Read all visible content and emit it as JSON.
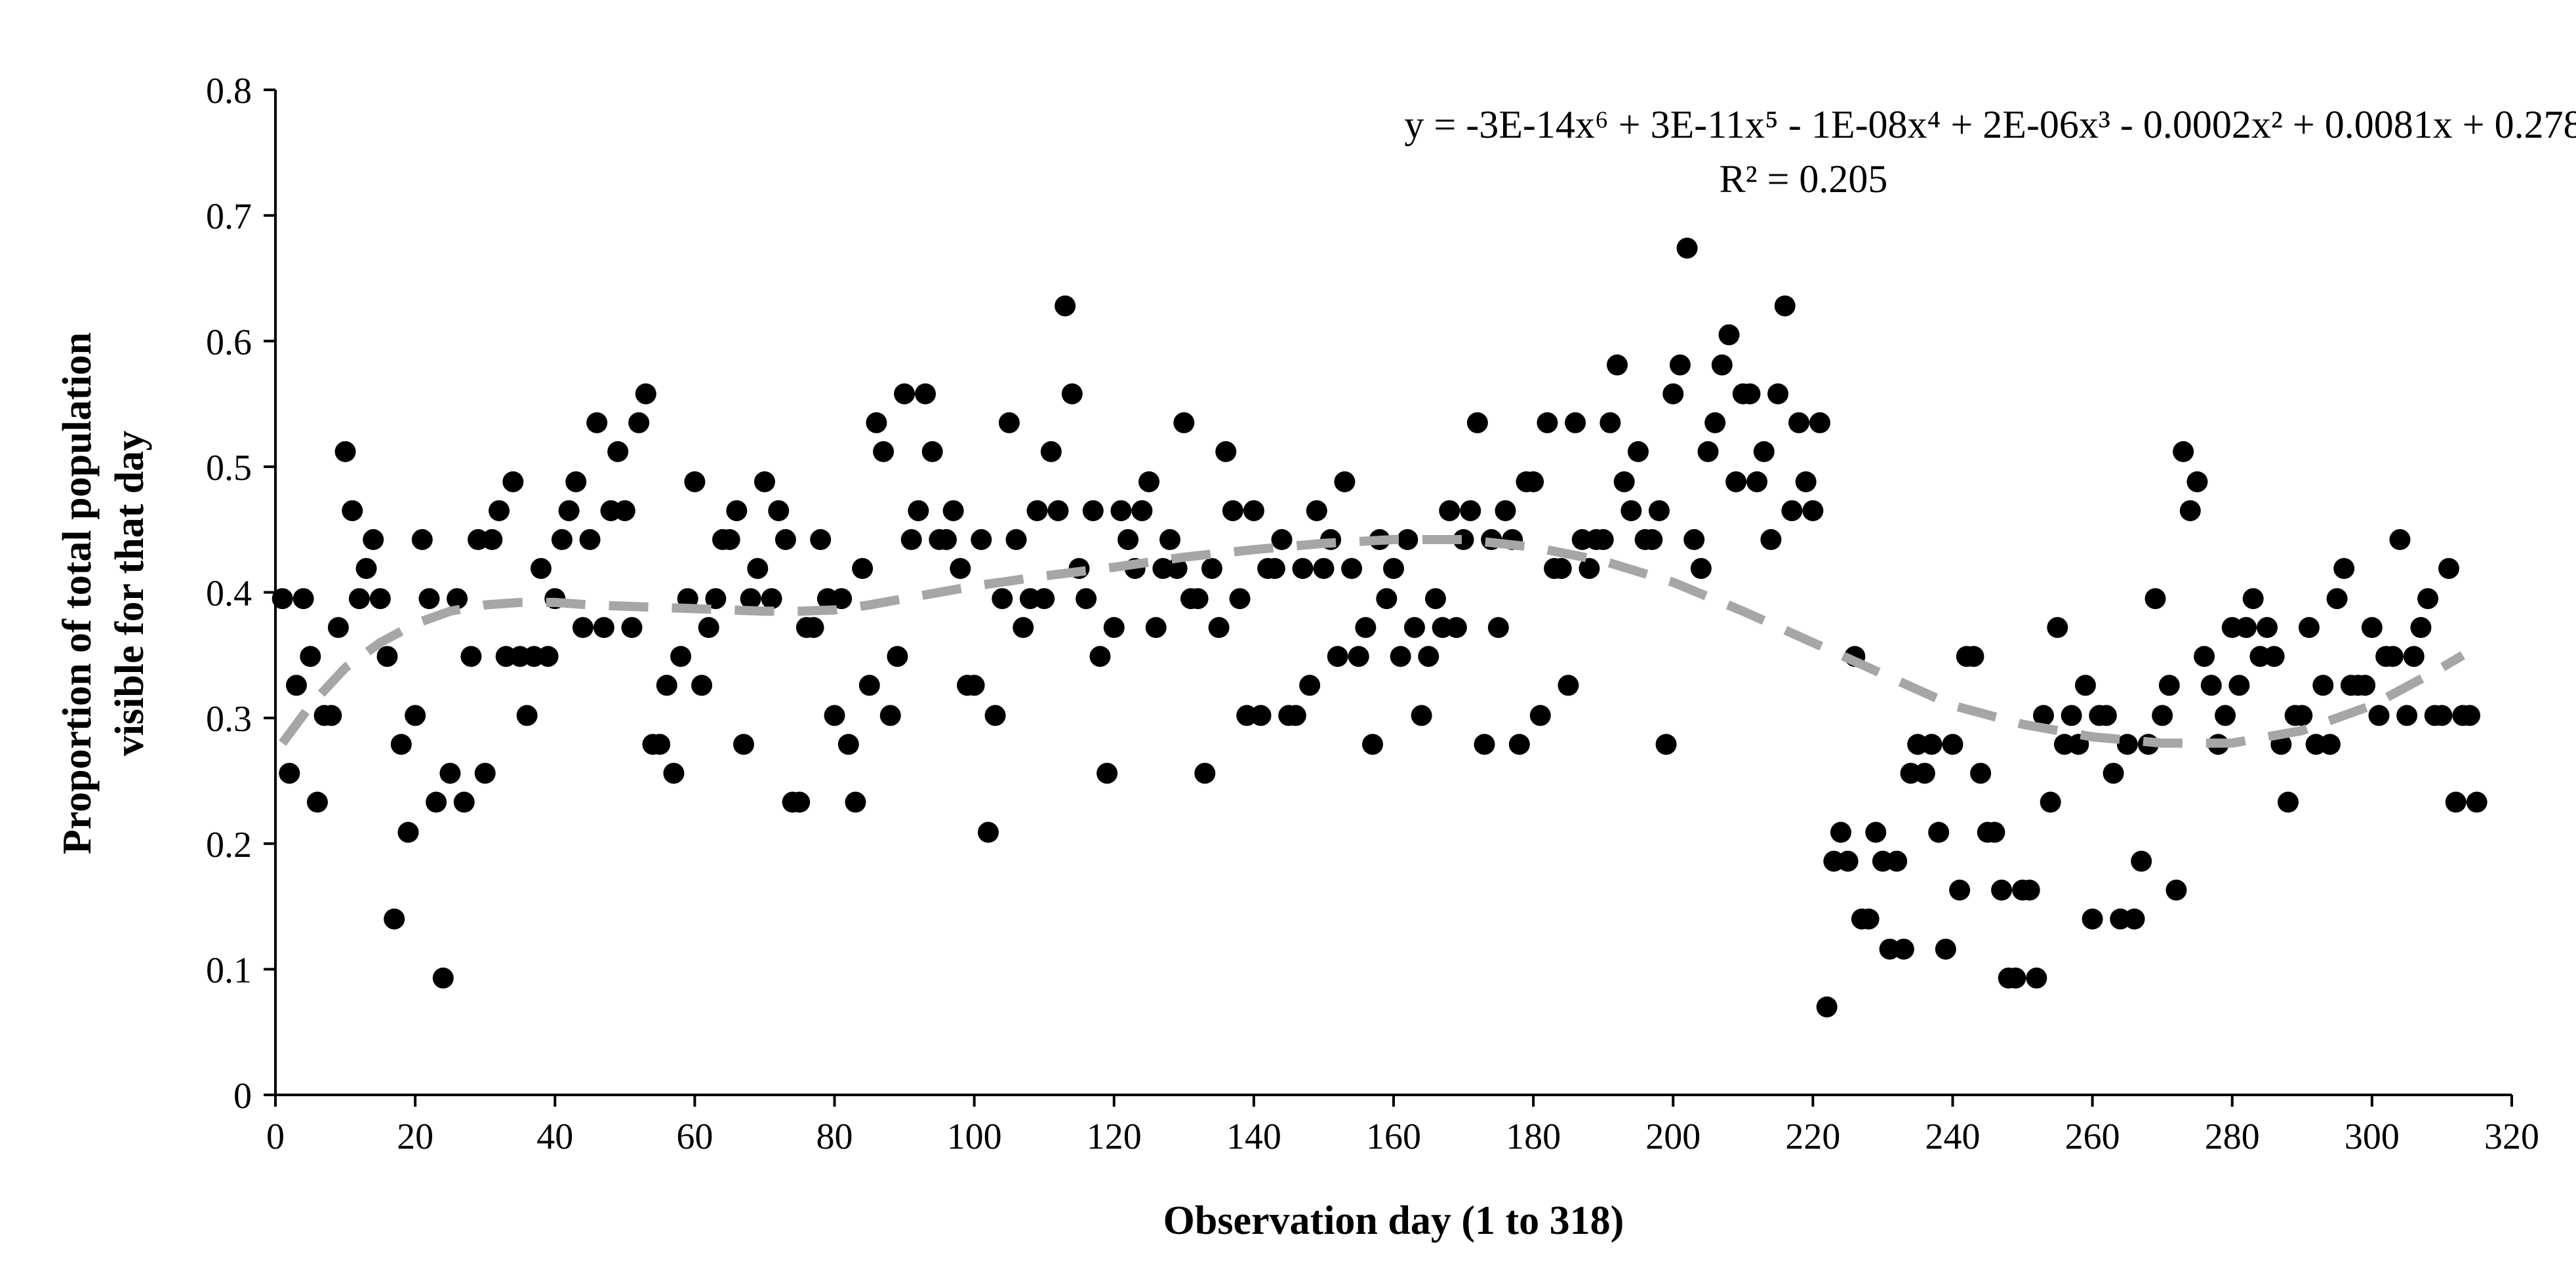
{
  "chart_data": {
    "type": "scatter",
    "xlabel": "Observation day (1 to 318)",
    "ylabel_lines": [
      "Proportion of total population",
      "visible for that day"
    ],
    "xlim": [
      0,
      320
    ],
    "ylim": [
      0,
      0.8
    ],
    "x_ticks": [
      "0",
      "20",
      "40",
      "60",
      "80",
      "100",
      "120",
      "140",
      "160",
      "180",
      "200",
      "220",
      "240",
      "260",
      "280",
      "300",
      "320"
    ],
    "y_ticks": [
      "0",
      "0.1",
      "0.2",
      "0.3",
      "0.4",
      "0.5",
      "0.6",
      "0.7",
      "0.8"
    ],
    "grid": false,
    "legend": "none",
    "trendline": {
      "type": "polynomial",
      "order": 6,
      "equation": "y = -3E-14x⁶ + 3E-11x⁵ - 1E-08x⁴ + 2E-06x³ - 0.0002x² + 0.0081x + 0.278",
      "r_squared": "R² = 0.205",
      "x_range": [
        1,
        313
      ],
      "curve": [
        [
          1,
          0.28
        ],
        [
          5,
          0.31
        ],
        [
          10,
          0.34
        ],
        [
          15,
          0.36
        ],
        [
          20,
          0.375
        ],
        [
          25,
          0.385
        ],
        [
          30,
          0.39
        ],
        [
          35,
          0.392
        ],
        [
          40,
          0.392
        ],
        [
          45,
          0.39
        ],
        [
          50,
          0.389
        ],
        [
          55,
          0.388
        ],
        [
          60,
          0.387
        ],
        [
          65,
          0.386
        ],
        [
          70,
          0.385
        ],
        [
          75,
          0.385
        ],
        [
          80,
          0.386
        ],
        [
          85,
          0.39
        ],
        [
          90,
          0.395
        ],
        [
          95,
          0.4
        ],
        [
          100,
          0.405
        ],
        [
          110,
          0.413
        ],
        [
          120,
          0.42
        ],
        [
          130,
          0.428
        ],
        [
          140,
          0.434
        ],
        [
          150,
          0.439
        ],
        [
          160,
          0.442
        ],
        [
          170,
          0.442
        ],
        [
          180,
          0.436
        ],
        [
          190,
          0.425
        ],
        [
          200,
          0.408
        ],
        [
          210,
          0.385
        ],
        [
          220,
          0.36
        ],
        [
          230,
          0.335
        ],
        [
          240,
          0.31
        ],
        [
          250,
          0.295
        ],
        [
          260,
          0.285
        ],
        [
          270,
          0.28
        ],
        [
          280,
          0.28
        ],
        [
          290,
          0.29
        ],
        [
          300,
          0.31
        ],
        [
          305,
          0.325
        ],
        [
          310,
          0.34
        ],
        [
          313,
          0.35
        ]
      ]
    },
    "colors": {
      "points": "#000000",
      "trendline": "#a6a6a6",
      "axis": "#000000"
    },
    "points": [
      [
        1,
        0.395
      ],
      [
        2,
        0.256
      ],
      [
        3,
        0.326
      ],
      [
        4,
        0.395
      ],
      [
        5,
        0.349
      ],
      [
        6,
        0.233
      ],
      [
        7,
        0.302
      ],
      [
        8,
        0.302
      ],
      [
        9,
        0.372
      ],
      [
        10,
        0.512
      ],
      [
        11,
        0.465
      ],
      [
        12,
        0.395
      ],
      [
        13,
        0.419
      ],
      [
        14,
        0.442
      ],
      [
        15,
        0.395
      ],
      [
        16,
        0.349
      ],
      [
        17,
        0.14
      ],
      [
        18,
        0.279
      ],
      [
        19,
        0.209
      ],
      [
        20,
        0.302
      ],
      [
        21,
        0.442
      ],
      [
        22,
        0.395
      ],
      [
        23,
        0.233
      ],
      [
        24,
        0.093
      ],
      [
        25,
        0.256
      ],
      [
        26,
        0.395
      ],
      [
        27,
        0.233
      ],
      [
        28,
        0.349
      ],
      [
        29,
        0.442
      ],
      [
        30,
        0.256
      ],
      [
        31,
        0.442
      ],
      [
        32,
        0.465
      ],
      [
        33,
        0.349
      ],
      [
        34,
        0.488
      ],
      [
        35,
        0.349
      ],
      [
        36,
        0.302
      ],
      [
        37,
        0.349
      ],
      [
        38,
        0.419
      ],
      [
        39,
        0.349
      ],
      [
        40,
        0.395
      ],
      [
        41,
        0.442
      ],
      [
        42,
        0.465
      ],
      [
        43,
        0.488
      ],
      [
        44,
        0.372
      ],
      [
        45,
        0.442
      ],
      [
        46,
        0.535
      ],
      [
        47,
        0.372
      ],
      [
        48,
        0.465
      ],
      [
        49,
        0.512
      ],
      [
        50,
        0.465
      ],
      [
        51,
        0.372
      ],
      [
        52,
        0.535
      ],
      [
        53,
        0.558
      ],
      [
        54,
        0.279
      ],
      [
        55,
        0.279
      ],
      [
        56,
        0.326
      ],
      [
        57,
        0.256
      ],
      [
        58,
        0.349
      ],
      [
        59,
        0.395
      ],
      [
        60,
        0.488
      ],
      [
        61,
        0.326
      ],
      [
        62,
        0.372
      ],
      [
        63,
        0.395
      ],
      [
        64,
        0.442
      ],
      [
        65,
        0.442
      ],
      [
        66,
        0.465
      ],
      [
        67,
        0.279
      ],
      [
        68,
        0.395
      ],
      [
        69,
        0.419
      ],
      [
        70,
        0.488
      ],
      [
        71,
        0.395
      ],
      [
        72,
        0.465
      ],
      [
        73,
        0.442
      ],
      [
        74,
        0.233
      ],
      [
        75,
        0.233
      ],
      [
        76,
        0.372
      ],
      [
        77,
        0.372
      ],
      [
        78,
        0.442
      ],
      [
        79,
        0.395
      ],
      [
        80,
        0.302
      ],
      [
        81,
        0.395
      ],
      [
        82,
        0.279
      ],
      [
        83,
        0.233
      ],
      [
        84,
        0.419
      ],
      [
        85,
        0.326
      ],
      [
        86,
        0.535
      ],
      [
        87,
        0.512
      ],
      [
        88,
        0.302
      ],
      [
        89,
        0.349
      ],
      [
        90,
        0.558
      ],
      [
        91,
        0.442
      ],
      [
        92,
        0.465
      ],
      [
        93,
        0.558
      ],
      [
        94,
        0.512
      ],
      [
        95,
        0.442
      ],
      [
        96,
        0.442
      ],
      [
        97,
        0.465
      ],
      [
        98,
        0.419
      ],
      [
        99,
        0.326
      ],
      [
        100,
        0.326
      ],
      [
        101,
        0.442
      ],
      [
        102,
        0.209
      ],
      [
        103,
        0.302
      ],
      [
        104,
        0.395
      ],
      [
        105,
        0.535
      ],
      [
        106,
        0.442
      ],
      [
        107,
        0.372
      ],
      [
        108,
        0.395
      ],
      [
        109,
        0.465
      ],
      [
        110,
        0.395
      ],
      [
        111,
        0.512
      ],
      [
        112,
        0.465
      ],
      [
        113,
        0.628
      ],
      [
        114,
        0.558
      ],
      [
        115,
        0.419
      ],
      [
        116,
        0.395
      ],
      [
        117,
        0.465
      ],
      [
        118,
        0.349
      ],
      [
        119,
        0.256
      ],
      [
        120,
        0.372
      ],
      [
        121,
        0.465
      ],
      [
        122,
        0.442
      ],
      [
        123,
        0.419
      ],
      [
        124,
        0.465
      ],
      [
        125,
        0.488
      ],
      [
        126,
        0.372
      ],
      [
        127,
        0.419
      ],
      [
        128,
        0.442
      ],
      [
        129,
        0.419
      ],
      [
        130,
        0.535
      ],
      [
        131,
        0.395
      ],
      [
        132,
        0.395
      ],
      [
        133,
        0.256
      ],
      [
        134,
        0.419
      ],
      [
        135,
        0.372
      ],
      [
        136,
        0.512
      ],
      [
        137,
        0.465
      ],
      [
        138,
        0.395
      ],
      [
        139,
        0.302
      ],
      [
        140,
        0.465
      ],
      [
        141,
        0.302
      ],
      [
        142,
        0.419
      ],
      [
        143,
        0.419
      ],
      [
        144,
        0.442
      ],
      [
        145,
        0.302
      ],
      [
        146,
        0.302
      ],
      [
        147,
        0.419
      ],
      [
        148,
        0.326
      ],
      [
        149,
        0.465
      ],
      [
        150,
        0.419
      ],
      [
        151,
        0.442
      ],
      [
        152,
        0.349
      ],
      [
        153,
        0.488
      ],
      [
        154,
        0.419
      ],
      [
        155,
        0.349
      ],
      [
        156,
        0.372
      ],
      [
        157,
        0.279
      ],
      [
        158,
        0.442
      ],
      [
        159,
        0.395
      ],
      [
        160,
        0.419
      ],
      [
        161,
        0.349
      ],
      [
        162,
        0.442
      ],
      [
        163,
        0.372
      ],
      [
        164,
        0.302
      ],
      [
        165,
        0.349
      ],
      [
        166,
        0.395
      ],
      [
        167,
        0.372
      ],
      [
        168,
        0.465
      ],
      [
        169,
        0.372
      ],
      [
        170,
        0.442
      ],
      [
        171,
        0.465
      ],
      [
        172,
        0.535
      ],
      [
        173,
        0.279
      ],
      [
        174,
        0.442
      ],
      [
        175,
        0.372
      ],
      [
        176,
        0.465
      ],
      [
        177,
        0.442
      ],
      [
        178,
        0.279
      ],
      [
        179,
        0.488
      ],
      [
        180,
        0.488
      ],
      [
        181,
        0.302
      ],
      [
        182,
        0.535
      ],
      [
        183,
        0.419
      ],
      [
        184,
        0.419
      ],
      [
        185,
        0.326
      ],
      [
        186,
        0.535
      ],
      [
        187,
        0.442
      ],
      [
        188,
        0.419
      ],
      [
        189,
        0.442
      ],
      [
        190,
        0.442
      ],
      [
        191,
        0.535
      ],
      [
        192,
        0.581
      ],
      [
        193,
        0.488
      ],
      [
        194,
        0.465
      ],
      [
        195,
        0.512
      ],
      [
        196,
        0.442
      ],
      [
        197,
        0.442
      ],
      [
        198,
        0.465
      ],
      [
        199,
        0.279
      ],
      [
        200,
        0.558
      ],
      [
        201,
        0.581
      ],
      [
        202,
        0.674
      ],
      [
        203,
        0.442
      ],
      [
        204,
        0.419
      ],
      [
        205,
        0.512
      ],
      [
        206,
        0.535
      ],
      [
        207,
        0.581
      ],
      [
        208,
        0.605
      ],
      [
        209,
        0.488
      ],
      [
        210,
        0.558
      ],
      [
        211,
        0.558
      ],
      [
        212,
        0.488
      ],
      [
        213,
        0.512
      ],
      [
        214,
        0.442
      ],
      [
        215,
        0.558
      ],
      [
        216,
        0.628
      ],
      [
        217,
        0.465
      ],
      [
        218,
        0.535
      ],
      [
        219,
        0.488
      ],
      [
        220,
        0.465
      ],
      [
        221,
        0.535
      ],
      [
        222,
        0.07
      ],
      [
        223,
        0.186
      ],
      [
        224,
        0.209
      ],
      [
        225,
        0.186
      ],
      [
        226,
        0.349
      ],
      [
        227,
        0.14
      ],
      [
        228,
        0.14
      ],
      [
        229,
        0.209
      ],
      [
        230,
        0.186
      ],
      [
        231,
        0.116
      ],
      [
        232,
        0.186
      ],
      [
        233,
        0.116
      ],
      [
        234,
        0.256
      ],
      [
        235,
        0.279
      ],
      [
        236,
        0.256
      ],
      [
        237,
        0.279
      ],
      [
        238,
        0.209
      ],
      [
        239,
        0.116
      ],
      [
        240,
        0.279
      ],
      [
        241,
        0.163
      ],
      [
        242,
        0.349
      ],
      [
        243,
        0.349
      ],
      [
        244,
        0.256
      ],
      [
        245,
        0.209
      ],
      [
        246,
        0.209
      ],
      [
        247,
        0.163
      ],
      [
        248,
        0.093
      ],
      [
        249,
        0.093
      ],
      [
        250,
        0.163
      ],
      [
        251,
        0.163
      ],
      [
        252,
        0.093
      ],
      [
        253,
        0.302
      ],
      [
        254,
        0.233
      ],
      [
        255,
        0.372
      ],
      [
        256,
        0.279
      ],
      [
        257,
        0.302
      ],
      [
        258,
        0.279
      ],
      [
        259,
        0.326
      ],
      [
        260,
        0.14
      ],
      [
        261,
        0.302
      ],
      [
        262,
        0.302
      ],
      [
        263,
        0.256
      ],
      [
        264,
        0.14
      ],
      [
        265,
        0.279
      ],
      [
        266,
        0.14
      ],
      [
        267,
        0.186
      ],
      [
        268,
        0.279
      ],
      [
        269,
        0.395
      ],
      [
        270,
        0.302
      ],
      [
        271,
        0.326
      ],
      [
        272,
        0.163
      ],
      [
        273,
        0.512
      ],
      [
        274,
        0.465
      ],
      [
        275,
        0.488
      ],
      [
        276,
        0.349
      ],
      [
        277,
        0.326
      ],
      [
        278,
        0.279
      ],
      [
        279,
        0.302
      ],
      [
        280,
        0.372
      ],
      [
        281,
        0.326
      ],
      [
        282,
        0.372
      ],
      [
        283,
        0.395
      ],
      [
        284,
        0.349
      ],
      [
        285,
        0.372
      ],
      [
        286,
        0.349
      ],
      [
        287,
        0.279
      ],
      [
        288,
        0.233
      ],
      [
        289,
        0.302
      ],
      [
        290,
        0.302
      ],
      [
        291,
        0.372
      ],
      [
        292,
        0.279
      ],
      [
        293,
        0.326
      ],
      [
        294,
        0.279
      ],
      [
        295,
        0.395
      ],
      [
        296,
        0.419
      ],
      [
        297,
        0.326
      ],
      [
        298,
        0.326
      ],
      [
        299,
        0.326
      ],
      [
        300,
        0.372
      ],
      [
        301,
        0.302
      ],
      [
        302,
        0.349
      ],
      [
        303,
        0.349
      ],
      [
        304,
        0.442
      ],
      [
        305,
        0.302
      ],
      [
        306,
        0.349
      ],
      [
        307,
        0.372
      ],
      [
        308,
        0.395
      ],
      [
        309,
        0.302
      ],
      [
        310,
        0.302
      ],
      [
        311,
        0.419
      ],
      [
        312,
        0.233
      ],
      [
        313,
        0.302
      ],
      [
        314,
        0.302
      ],
      [
        315,
        0.233
      ]
    ]
  }
}
